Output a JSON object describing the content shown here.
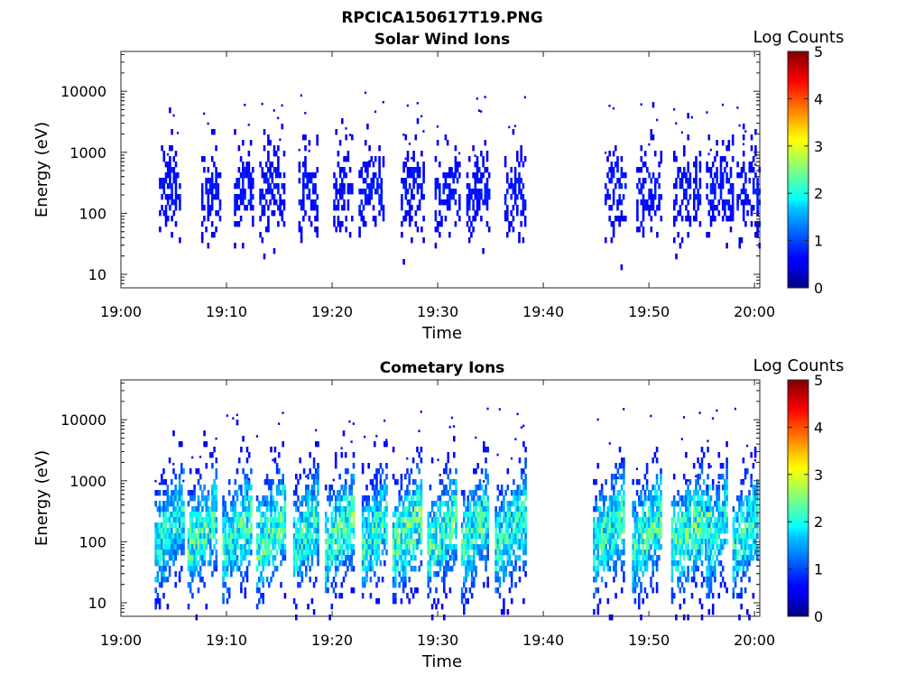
{
  "figure": {
    "title": "RPCICA150617T19.PNG",
    "background": "#ffffff"
  },
  "chart_data": [
    {
      "type": "heatmap",
      "title": "Solar Wind Ions",
      "xlabel": "Time",
      "ylabel": "Energy (eV)",
      "x_ticks": [
        "19:00",
        "19:10",
        "19:20",
        "19:30",
        "19:40",
        "19:50",
        "20:00"
      ],
      "x_tick_minutes": [
        0,
        10,
        20,
        30,
        40,
        50,
        60
      ],
      "xlim_minutes": [
        0,
        60.5
      ],
      "y_scale": "log",
      "y_ticks": [
        10,
        100,
        1000,
        10000
      ],
      "y_tick_labels": [
        "10",
        "100",
        "1000",
        "10000"
      ],
      "ylim": [
        6,
        45000
      ],
      "colorbar": {
        "label": "Log Counts",
        "range": [
          0,
          5
        ],
        "ticks": [
          "0",
          "1",
          "2",
          "3",
          "4",
          "5"
        ],
        "colormap": "jet"
      },
      "grid": false,
      "intensity_level": 0.15,
      "bursts": [
        {
          "start_min": 3.6,
          "end_min": 5.5,
          "intensity": 0.6
        },
        {
          "start_min": 7.6,
          "end_min": 9.3,
          "intensity": 0.6
        },
        {
          "start_min": 10.7,
          "end_min": 12.4,
          "intensity": 0.6
        },
        {
          "start_min": 13.1,
          "end_min": 15.4,
          "intensity": 0.6
        },
        {
          "start_min": 16.8,
          "end_min": 18.6,
          "intensity": 0.6
        },
        {
          "start_min": 20.1,
          "end_min": 21.9,
          "intensity": 0.6
        },
        {
          "start_min": 22.5,
          "end_min": 24.9,
          "intensity": 0.6
        },
        {
          "start_min": 26.5,
          "end_min": 28.7,
          "intensity": 0.6
        },
        {
          "start_min": 29.7,
          "end_min": 32.1,
          "intensity": 0.6
        },
        {
          "start_min": 32.7,
          "end_min": 34.9,
          "intensity": 0.6
        },
        {
          "start_min": 36.3,
          "end_min": 38.2,
          "intensity": 0.6
        },
        {
          "start_min": 45.8,
          "end_min": 47.8,
          "intensity": 0.6
        },
        {
          "start_min": 48.8,
          "end_min": 51.1,
          "intensity": 0.6
        },
        {
          "start_min": 52.3,
          "end_min": 54.9,
          "intensity": 0.6
        },
        {
          "start_min": 55.4,
          "end_min": 57.9,
          "intensity": 0.6
        },
        {
          "start_min": 58.3,
          "end_min": 60.4,
          "intensity": 0.6
        }
      ]
    },
    {
      "type": "heatmap",
      "title": "Cometary Ions",
      "xlabel": "Time",
      "ylabel": "Energy (eV)",
      "x_ticks": [
        "19:00",
        "19:10",
        "19:20",
        "19:30",
        "19:40",
        "19:50",
        "20:00"
      ],
      "x_tick_minutes": [
        0,
        10,
        20,
        30,
        40,
        50,
        60
      ],
      "xlim_minutes": [
        0,
        60.5
      ],
      "y_scale": "log",
      "y_ticks": [
        10,
        100,
        1000,
        10000
      ],
      "y_tick_labels": [
        "10",
        "100",
        "1000",
        "10000"
      ],
      "ylim": [
        6,
        45000
      ],
      "colorbar": {
        "label": "Log Counts",
        "range": [
          0,
          5
        ],
        "ticks": [
          "0",
          "1",
          "2",
          "3",
          "4",
          "5"
        ],
        "colormap": "jet"
      },
      "grid": false,
      "intensity_level": 1.6,
      "bursts": [
        {
          "start_min": 3.2,
          "end_min": 5.9,
          "intensity": 2.1
        },
        {
          "start_min": 6.3,
          "end_min": 9.1,
          "intensity": 2.3
        },
        {
          "start_min": 9.6,
          "end_min": 12.4,
          "intensity": 2.3
        },
        {
          "start_min": 12.8,
          "end_min": 15.6,
          "intensity": 2.4
        },
        {
          "start_min": 16.3,
          "end_min": 18.6,
          "intensity": 2.2
        },
        {
          "start_min": 19.3,
          "end_min": 22.1,
          "intensity": 2.4
        },
        {
          "start_min": 22.8,
          "end_min": 25.2,
          "intensity": 2.2
        },
        {
          "start_min": 25.7,
          "end_min": 28.5,
          "intensity": 2.5
        },
        {
          "start_min": 29.0,
          "end_min": 31.8,
          "intensity": 2.4
        },
        {
          "start_min": 32.2,
          "end_min": 34.7,
          "intensity": 2.3
        },
        {
          "start_min": 35.4,
          "end_min": 38.3,
          "intensity": 2.2
        },
        {
          "start_min": 44.7,
          "end_min": 47.6,
          "intensity": 2.3
        },
        {
          "start_min": 48.4,
          "end_min": 51.2,
          "intensity": 2.4
        },
        {
          "start_min": 52.1,
          "end_min": 55.7,
          "intensity": 2.6
        },
        {
          "start_min": 55.4,
          "end_min": 57.3,
          "intensity": 2.1
        },
        {
          "start_min": 57.9,
          "end_min": 60.3,
          "intensity": 2.2
        }
      ]
    }
  ]
}
